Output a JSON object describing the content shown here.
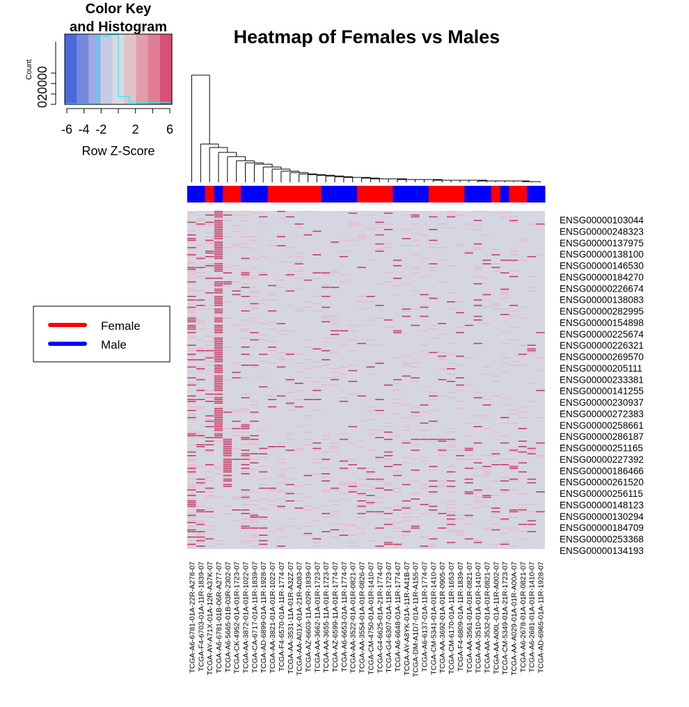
{
  "chart_data": {
    "type": "heatmap",
    "title": "Heatmap of Females vs Males",
    "color_key": {
      "title_line1": "Color Key",
      "title_line2": "and Histogram",
      "xlabel": "Row Z-Score",
      "ylabel": "Count",
      "x_ticks": [
        "-6",
        "-4",
        "-2",
        "2",
        "6"
      ],
      "y_ticks": [
        "0",
        "20000"
      ],
      "colors": [
        "#4a6ad9",
        "#7389df",
        "#9ea8e3",
        "#c5cbe6",
        "#d9d9e1",
        "#e3c1cb",
        "#e39cae",
        "#df7d95",
        "#d94f77"
      ]
    },
    "legend": {
      "position": "left",
      "items": [
        {
          "label": "Female",
          "color": "#ff0000"
        },
        {
          "label": "Male",
          "color": "#0000ff"
        }
      ]
    },
    "colors": {
      "background": "#d5d6e2",
      "mid": "#e7bcc8",
      "high": "#cc3b63",
      "female": "#ff0000",
      "male": "#0000ff"
    },
    "column_labels": [
      "TCGA-A6-6781-01A-22R-A278-07",
      "TCGA-F4-6703-01A-11R-1839-07",
      "TCGA-AY-A71X-01A-12R-A37K-07",
      "TCGA-A6-6781-01B-06R-A277-07",
      "TCGA-A6-5665-01B-03R-2302-07",
      "TCGA-CK-4952-01A-01R-1723-07",
      "TCGA-AA-3872-01A-01R-1022-07",
      "TCGA-CA-6717-01A-11R-1839-07",
      "TCGA-AD-6899-01A-11R-1928-07",
      "TCGA-AA-3821-01A-01R-1022-07",
      "TCGA-F4-6570-01A-11R-1774-07",
      "TCGA-AA-3531-11A-01R-A32Z-07",
      "TCGA-AA-A01X-01A-21R-A083-07",
      "TCGA-AZ-6603-11A-02R-1839-07",
      "TCGA-AA-3662-11A-01R-1723-07",
      "TCGA-AA-3655-11A-01R-1723-07",
      "TCGA-AZ-6599-11A-01R-1774-07",
      "TCGA-A6-6653-01A-11R-1774-07",
      "TCGA-AA-3522-01A-01R-0821-07",
      "TCGA-AA-3554-01A-01R-0826-07",
      "TCGA-CM-4750-01A-01R-1410-07",
      "TCGA-G4-6625-01A-21R-1774-07",
      "TCGA-G4-6307-01A-11R-1723-07",
      "TCGA-A6-6648-01A-11R-1774-07",
      "TCGA-AY-A8YK-01A-11R-A41B-07",
      "TCGA-DM-A1D7-01A-11R-A155-07",
      "TCGA-A6-6137-01A-11R-1774-07",
      "TCGA-CM-5341-01A-01R-1410-07",
      "TCGA-AA-3692-01A-01R-0905-07",
      "TCGA-CM-6170-01A-11R-1653-07",
      "TCGA-F4-6809-01A-11R-1839-07",
      "TCGA-AA-3561-01A-01R-0821-07",
      "TCGA-AA-3510-01A-01R-1410-07",
      "TCGA-AA-3532-01A-01R-0821-07",
      "TCGA-AA-A00L-01A-11R-A002-07",
      "TCGA-CM-5349-01A-21R-1723-07",
      "TCGA-AA-A029-01A-01R-A00A-07",
      "TCGA-A6-2678-01A-01R-0821-07",
      "TCGA-A6-2681-01A-01R-1410-07",
      "TCGA-AD-6965-01A-11R-1928-07"
    ],
    "column_groups": [
      "M",
      "M",
      "F",
      "M",
      "F",
      "F",
      "M",
      "M",
      "M",
      "F",
      "F",
      "F",
      "F",
      "F",
      "F",
      "M",
      "M",
      "M",
      "M",
      "F",
      "F",
      "F",
      "F",
      "M",
      "M",
      "M",
      "M",
      "F",
      "F",
      "F",
      "F",
      "M",
      "M",
      "M",
      "F",
      "M",
      "F",
      "F",
      "M",
      "M"
    ],
    "row_labels": [
      "ENSG00000103044",
      "ENSG00000248323",
      "ENSG00000137975",
      "ENSG00000138100",
      "ENSG00000146530",
      "ENSG00000184270",
      "ENSG00000226674",
      "ENSG00000138083",
      "ENSG00000282995",
      "ENSG00000154898",
      "ENSG00000225674",
      "ENSG00000226321",
      "ENSG00000269570",
      "ENSG00000205111",
      "ENSG00000233381",
      "ENSG00000141255",
      "ENSG00000230937",
      "ENSG00000272383",
      "ENSG00000258661",
      "ENSG00000286187",
      "ENSG00000251165",
      "ENSG00000227392",
      "ENSG00000186466",
      "ENSG00000261520",
      "ENSG00000256115",
      "ENSG00000148123",
      "ENSG00000130294",
      "ENSG00000184709",
      "ENSG00000253368",
      "ENSG00000134193"
    ]
  }
}
